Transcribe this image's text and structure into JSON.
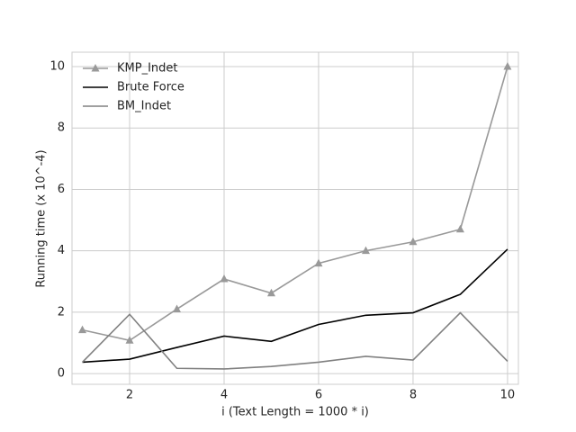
{
  "chart_data": {
    "type": "line",
    "xlabel": "i (Text Length = 1000 * i)",
    "ylabel": "Running time (x 10^-4)",
    "x": [
      1,
      2,
      3,
      4,
      5,
      6,
      7,
      8,
      9,
      10
    ],
    "series": [
      {
        "name": "KMP_Indet",
        "color": "#999999",
        "marker": "triangle",
        "values": [
          1.42,
          1.08,
          2.1,
          3.08,
          2.62,
          3.59,
          4.0,
          4.29,
          4.7,
          10.0
        ]
      },
      {
        "name": "Brute Force",
        "color": "#000000",
        "values": [
          0.37,
          0.47,
          0.85,
          1.22,
          1.05,
          1.6,
          1.9,
          1.98,
          2.58,
          4.05
        ]
      },
      {
        "name": "BM_Indet",
        "color": "#808080",
        "values": [
          0.37,
          1.93,
          0.17,
          0.15,
          0.23,
          0.37,
          0.56,
          0.44,
          1.98,
          0.4
        ]
      }
    ],
    "xlim": [
      0.78,
      10.23
    ],
    "ylim": [
      -0.35,
      10.47
    ],
    "xticks": [
      2,
      4,
      6,
      8,
      10
    ],
    "yticks": [
      0,
      2,
      4,
      6,
      8,
      10
    ],
    "grid": true,
    "legend": "upper left"
  }
}
